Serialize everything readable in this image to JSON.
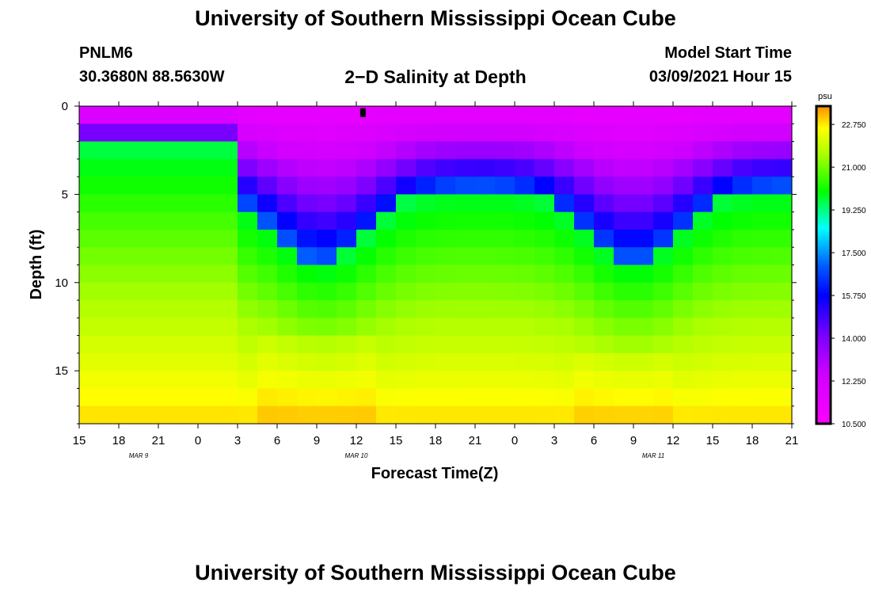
{
  "page": {
    "title_top": "University of Southern Mississippi Ocean Cube",
    "title_bottom": "University of Southern Mississippi Ocean Cube",
    "station_id": "PNLM6",
    "station_coords": "30.3680N 88.5630W",
    "plot_title": "2−D Salinity at Depth",
    "model_start_label": "Model Start Time",
    "model_start_value": "03/09/2021 Hour 15"
  },
  "chart_data": {
    "type": "heatmap",
    "title": "2-D Salinity at Depth",
    "xlabel": "Forecast Time(Z)",
    "ylabel": "Depth (ft)",
    "units": "psu",
    "x_start_hour": 0,
    "x_end_hour": 54,
    "x_step_hours": 1.5,
    "x_ticks": [
      {
        "hour": 0,
        "label": "15"
      },
      {
        "hour": 3,
        "label": "18"
      },
      {
        "hour": 6,
        "label": "21"
      },
      {
        "hour": 9,
        "label": "0"
      },
      {
        "hour": 12,
        "label": "3"
      },
      {
        "hour": 15,
        "label": "6"
      },
      {
        "hour": 18,
        "label": "9"
      },
      {
        "hour": 21,
        "label": "12"
      },
      {
        "hour": 24,
        "label": "15"
      },
      {
        "hour": 27,
        "label": "18"
      },
      {
        "hour": 30,
        "label": "21"
      },
      {
        "hour": 33,
        "label": "0"
      },
      {
        "hour": 36,
        "label": "3"
      },
      {
        "hour": 39,
        "label": "6"
      },
      {
        "hour": 42,
        "label": "9"
      },
      {
        "hour": 45,
        "label": "12"
      },
      {
        "hour": 48,
        "label": "15"
      },
      {
        "hour": 51,
        "label": "18"
      },
      {
        "hour": 54,
        "label": "21"
      }
    ],
    "date_labels": [
      {
        "hour": 4.5,
        "label": "MAR  9"
      },
      {
        "hour": 21,
        "label": "MAR  10"
      },
      {
        "hour": 43.5,
        "label": "MAR  11"
      }
    ],
    "y_range": [
      0,
      18
    ],
    "y_ticks": [
      0,
      5,
      10,
      15
    ],
    "depth_step_ft": 1,
    "colorbar": {
      "min": 10.5,
      "max": 23.5,
      "tick_values": [
        10.5,
        12.25,
        14.0,
        15.75,
        17.5,
        19.25,
        21.0,
        22.75
      ],
      "tick_labels": [
        "10.500",
        "12.250",
        "14.000",
        "15.750",
        "17.500",
        "19.250",
        "21.000",
        "22.750"
      ],
      "stops": [
        {
          "v": 10.5,
          "c": "#ff00ff"
        },
        {
          "v": 12.6,
          "c": "#cc00ff"
        },
        {
          "v": 14.0,
          "c": "#8000ff"
        },
        {
          "v": 15.75,
          "c": "#0000ff"
        },
        {
          "v": 17.0,
          "c": "#0060ff"
        },
        {
          "v": 18.5,
          "c": "#00ffff"
        },
        {
          "v": 20.0,
          "c": "#00ff00"
        },
        {
          "v": 21.5,
          "c": "#aaff00"
        },
        {
          "v": 22.6,
          "c": "#ffff00"
        },
        {
          "v": 23.5,
          "c": "#ff8c00"
        }
      ]
    },
    "marker": {
      "hour": 21.5,
      "depth_ft": 0.3
    },
    "model": {
      "halocline_base_ft": 4.6,
      "halocline_dip_ft": 4.2,
      "dip_centers_hours": [
        18.5,
        42.0
      ],
      "dip_width_hours": 5.0,
      "early_halocline_ft": 2.4,
      "early_until_hour": 12.5,
      "surface_salinity": 11.5,
      "mid_salinity": 17.0,
      "deep_salinity": 22.9,
      "bottom_depth_ft": 18
    }
  }
}
